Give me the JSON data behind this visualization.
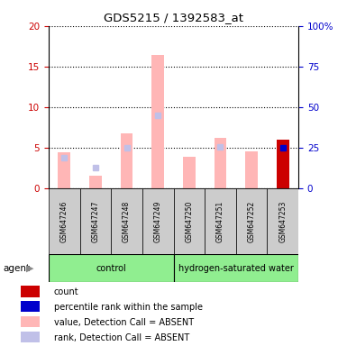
{
  "title": "GDS5215 / 1392583_at",
  "samples": [
    "GSM647246",
    "GSM647247",
    "GSM647248",
    "GSM647249",
    "GSM647250",
    "GSM647251",
    "GSM647252",
    "GSM647253"
  ],
  "value_absent": [
    4.5,
    1.6,
    6.8,
    16.4,
    3.9,
    6.2,
    4.6,
    6.0
  ],
  "rank_absent": [
    3.8,
    2.6,
    5.0,
    9.0,
    null,
    5.1,
    null,
    null
  ],
  "count_present": [
    null,
    null,
    null,
    null,
    null,
    null,
    null,
    6.0
  ],
  "percentile_present": [
    null,
    null,
    null,
    null,
    null,
    null,
    null,
    5.0
  ],
  "ylim_left": [
    0,
    20
  ],
  "ylim_right": [
    0,
    100
  ],
  "yticks_left": [
    0,
    5,
    10,
    15,
    20
  ],
  "yticks_right": [
    0,
    25,
    50,
    75,
    100
  ],
  "color_value_absent": "#FFB6B6",
  "color_rank_absent": "#C0C0E8",
  "color_count": "#CC0000",
  "color_percentile": "#0000CC",
  "left_tick_color": "#CC0000",
  "right_tick_color": "#0000CC",
  "group_label_control": "control",
  "group_label_hw": "hydrogen-saturated water",
  "agent_label": "agent",
  "bar_width": 0.4,
  "legend_items": [
    {
      "label": "count",
      "color": "#CC0000"
    },
    {
      "label": "percentile rank within the sample",
      "color": "#0000CC"
    },
    {
      "label": "value, Detection Call = ABSENT",
      "color": "#FFB6B6"
    },
    {
      "label": "rank, Detection Call = ABSENT",
      "color": "#C0C0E8"
    }
  ]
}
